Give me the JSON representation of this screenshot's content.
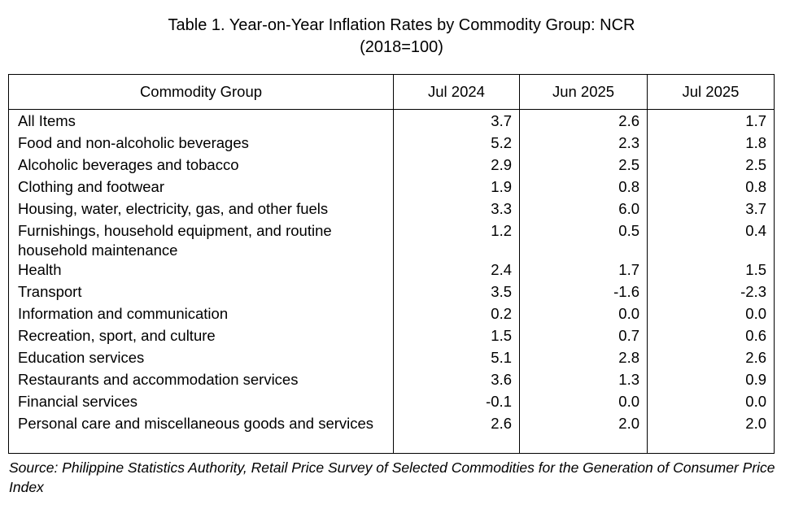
{
  "title": {
    "line1": "Table 1. Year-on-Year Inflation Rates by Commodity Group: NCR",
    "line2": "(2018=100)"
  },
  "table": {
    "headers": [
      "Commodity Group",
      "Jul 2024",
      "Jun 2025",
      "Jul 2025"
    ],
    "rows": [
      {
        "group": "All Items",
        "jul2024": "3.7",
        "jun2025": "2.6",
        "jul2025": "1.7"
      },
      {
        "group": "Food and non-alcoholic beverages",
        "jul2024": "5.2",
        "jun2025": "2.3",
        "jul2025": "1.8"
      },
      {
        "group": "Alcoholic beverages and tobacco",
        "jul2024": "2.9",
        "jun2025": "2.5",
        "jul2025": "2.5"
      },
      {
        "group": "Clothing and footwear",
        "jul2024": "1.9",
        "jun2025": "0.8",
        "jul2025": "0.8"
      },
      {
        "group": "Housing, water, electricity, gas, and other fuels",
        "jul2024": "3.3",
        "jun2025": "6.0",
        "jul2025": "3.7"
      },
      {
        "group": "Furnishings, household equipment, and routine household maintenance",
        "jul2024": "1.2",
        "jun2025": "0.5",
        "jul2025": "0.4"
      },
      {
        "group": "Health",
        "jul2024": "2.4",
        "jun2025": "1.7",
        "jul2025": "1.5"
      },
      {
        "group": "Transport",
        "jul2024": "3.5",
        "jun2025": "-1.6",
        "jul2025": "-2.3"
      },
      {
        "group": "Information and communication",
        "jul2024": "0.2",
        "jun2025": "0.0",
        "jul2025": "0.0"
      },
      {
        "group": "Recreation, sport, and culture",
        "jul2024": "1.5",
        "jun2025": "0.7",
        "jul2025": "0.6"
      },
      {
        "group": "Education services",
        "jul2024": "5.1",
        "jun2025": "2.8",
        "jul2025": "2.6"
      },
      {
        "group": "Restaurants and accommodation services",
        "jul2024": "3.6",
        "jun2025": "1.3",
        "jul2025": "0.9"
      },
      {
        "group": "Financial services",
        "jul2024": "-0.1",
        "jun2025": "0.0",
        "jul2025": "0.0"
      },
      {
        "group": "Personal care and miscellaneous goods and services",
        "jul2024": "2.6",
        "jun2025": "2.0",
        "jul2025": "2.0"
      }
    ]
  },
  "source": "Source: Philippine Statistics Authority, Retail Price Survey of Selected Commodities for the Generation of Consumer Price Index"
}
